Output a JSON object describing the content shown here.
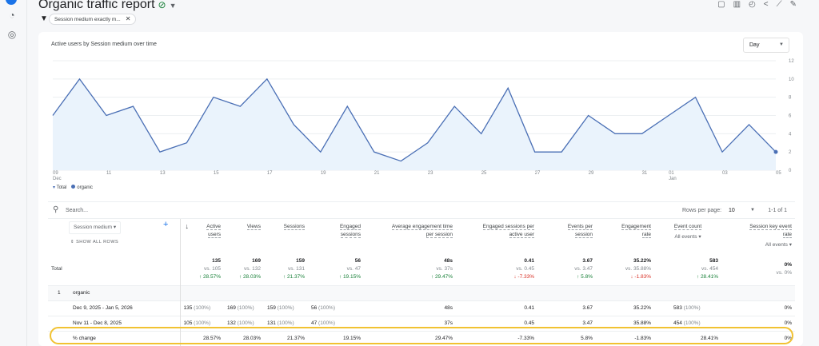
{
  "header": {
    "title": "Organic traffic report",
    "filter_chip": "Session medium exactly m...",
    "toolbar_icons": [
      "notes-icon",
      "compare-icon",
      "insights-icon",
      "share-icon",
      "trend-icon",
      "edit-icon"
    ]
  },
  "chart": {
    "title": "Active users by Session medium over time",
    "granularity": "Day",
    "legend": [
      "Total",
      "organic"
    ]
  },
  "chart_data": {
    "type": "line",
    "title": "Active users by Session medium over time",
    "x": [
      "Dec 9",
      "Dec 10",
      "Dec 11",
      "Dec 12",
      "Dec 13",
      "Dec 14",
      "Dec 15",
      "Dec 16",
      "Dec 17",
      "Dec 18",
      "Dec 19",
      "Dec 20",
      "Dec 21",
      "Dec 22",
      "Dec 23",
      "Dec 24",
      "Dec 25",
      "Dec 26",
      "Dec 27",
      "Dec 28",
      "Dec 29",
      "Dec 30",
      "Dec 31",
      "Jan 1",
      "Jan 2",
      "Jan 3",
      "Jan 4",
      "Jan 5"
    ],
    "x_tick_labels": [
      {
        "i": 0,
        "l": "09",
        "s": "Dec"
      },
      {
        "i": 2,
        "l": "11"
      },
      {
        "i": 4,
        "l": "13"
      },
      {
        "i": 6,
        "l": "15"
      },
      {
        "i": 8,
        "l": "17"
      },
      {
        "i": 10,
        "l": "19"
      },
      {
        "i": 12,
        "l": "21"
      },
      {
        "i": 14,
        "l": "23"
      },
      {
        "i": 16,
        "l": "25"
      },
      {
        "i": 18,
        "l": "27"
      },
      {
        "i": 20,
        "l": "29"
      },
      {
        "i": 22,
        "l": "31"
      },
      {
        "i": 23,
        "l": "01",
        "s": "Jan"
      },
      {
        "i": 25,
        "l": "03"
      },
      {
        "i": 27,
        "l": "05"
      }
    ],
    "series": [
      {
        "name": "organic",
        "values": [
          6,
          10,
          6,
          7,
          2,
          3,
          8,
          7,
          10,
          5,
          2,
          7,
          2,
          1,
          3,
          7,
          4,
          9,
          2,
          2,
          6,
          4,
          4,
          6,
          8,
          2,
          5,
          2
        ]
      }
    ],
    "ylim": [
      0,
      12
    ],
    "yticks": [
      0,
      2,
      4,
      6,
      8,
      10,
      12
    ],
    "grid": true,
    "legend": "bottom-left",
    "color": "#4a6fb5",
    "fill": "#eaf3fc"
  },
  "table": {
    "search_placeholder": "Search...",
    "rows_per_page_label": "Rows per page:",
    "rows_per_page": "10",
    "pagination": "1-1 of 1",
    "dimension": "Session medium",
    "show_all_rows": "SHOW ALL ROWS",
    "columns": [
      {
        "l1": "Active",
        "l2": "users"
      },
      {
        "l1": "Views",
        "l2": ""
      },
      {
        "l1": "Sessions",
        "l2": ""
      },
      {
        "l1": "Engaged",
        "l2": "sessions"
      },
      {
        "l1": "Average engagement time",
        "l2": "per session"
      },
      {
        "l1": "Engaged sessions per",
        "l2": "active user"
      },
      {
        "l1": "Events per",
        "l2": "session"
      },
      {
        "l1": "Engagement",
        "l2": "rate"
      },
      {
        "l1": "Event count",
        "l2": "",
        "sel": "All events"
      },
      {
        "l1": "Session key event",
        "l2": "rate",
        "sel": "All events"
      }
    ],
    "total": {
      "label": "Total",
      "values": [
        "135",
        "169",
        "159",
        "56",
        "48s",
        "0.41",
        "3.67",
        "35.22%",
        "583",
        "0%"
      ],
      "vs": [
        "vs. 105",
        "vs. 132",
        "vs. 131",
        "vs. 47",
        "vs. 37s",
        "vs. 0.45",
        "vs. 3.47",
        "vs. 35.88%",
        "vs. 454",
        "vs. 0%"
      ],
      "change": [
        "↑ 28.57%",
        "↑ 28.03%",
        "↑ 21.37%",
        "↑ 19.15%",
        "↑ 29.47%",
        "↓ -7.33%",
        "↑ 5.8%",
        "↓ -1.83%",
        "↑ 28.41%",
        ""
      ]
    },
    "group": {
      "index": "1",
      "label": "organic"
    },
    "rows": [
      {
        "label": "Dec 9, 2025 - Jan 5, 2026",
        "values": [
          "135",
          "169",
          "159",
          "56",
          "48s",
          "0.41",
          "3.67",
          "35.22%",
          "583",
          "0%"
        ],
        "pct": [
          "(100%)",
          "(100%)",
          "(100%)",
          "(100%)",
          "",
          "",
          "",
          "",
          "(100%)",
          ""
        ]
      },
      {
        "label": "Nov 11 - Dec 8, 2025",
        "values": [
          "105",
          "132",
          "131",
          "47",
          "37s",
          "0.45",
          "3.47",
          "35.88%",
          "454",
          "0%"
        ],
        "pct": [
          "(100%)",
          "(100%)",
          "(100%)",
          "(100%)",
          "",
          "",
          "",
          "",
          "(100%)",
          ""
        ]
      },
      {
        "label": "% change",
        "values": [
          "28.57%",
          "28.03%",
          "21.37%",
          "19.15%",
          "29.47%",
          "-7.33%",
          "5.8%",
          "-1.83%",
          "28.41%",
          "0%"
        ]
      }
    ]
  }
}
